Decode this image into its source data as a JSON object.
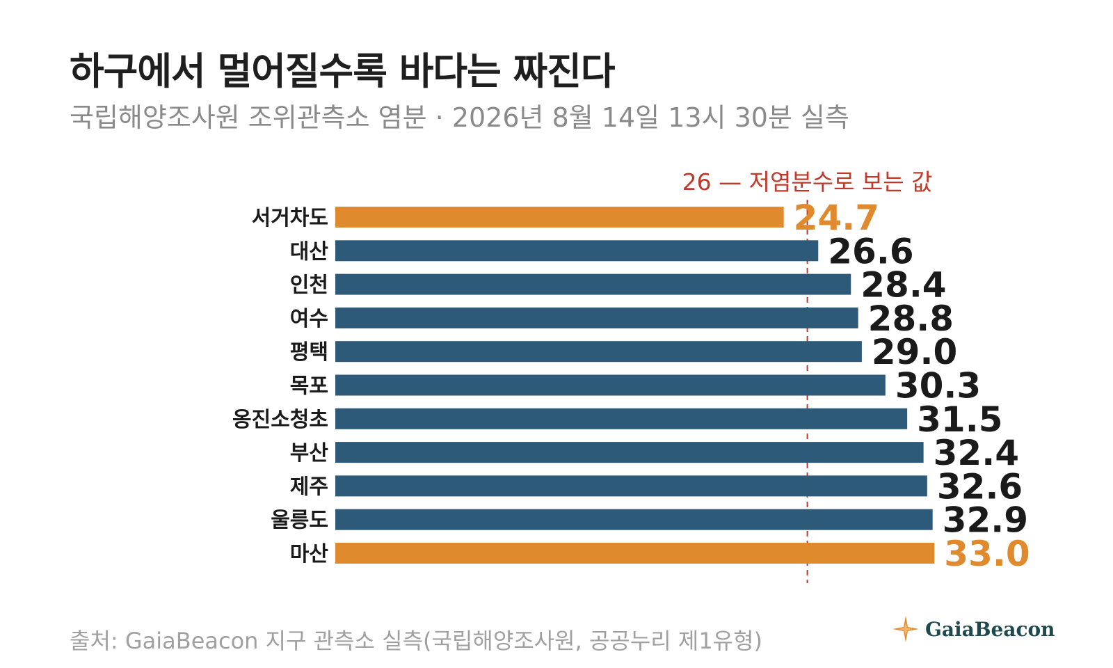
{
  "header": {
    "title": "하구에서 멀어질수록 바다는 짜진다",
    "subtitle": "국립해양조사원 조위관측소 염분 · 2026년 8월 14일 13시 30분 실측"
  },
  "chart_data": {
    "type": "bar",
    "orientation": "horizontal",
    "categories": [
      "서거차도",
      "대산",
      "인천",
      "여수",
      "평택",
      "목포",
      "옹진소청초",
      "부산",
      "제주",
      "울릉도",
      "마산"
    ],
    "values": [
      24.7,
      26.6,
      28.4,
      28.8,
      29.0,
      30.3,
      31.5,
      32.4,
      32.6,
      32.9,
      33.0
    ],
    "value_labels": [
      "24.7",
      "26.6",
      "28.4",
      "28.8",
      "29.0",
      "30.3",
      "31.5",
      "32.4",
      "32.6",
      "32.9",
      "33.0"
    ],
    "highlight": [
      true,
      false,
      false,
      false,
      false,
      false,
      false,
      false,
      false,
      false,
      true
    ],
    "reference_line": {
      "value": 26,
      "label": "26 — 저염분수로 보는 값"
    },
    "colors": {
      "bar": "#2e5a7a",
      "highlight": "#e08a2e",
      "reference": "#c0392b",
      "label": "#1a1a1a"
    },
    "grid": false,
    "legend": "none"
  },
  "footer": {
    "source": "출처: GaiaBeacon 지구 관측소 실측(국립해양조사원, 공공누리 제1유형)"
  },
  "brand": {
    "name": "GaiaBeacon",
    "icon": "compass-star-icon"
  }
}
